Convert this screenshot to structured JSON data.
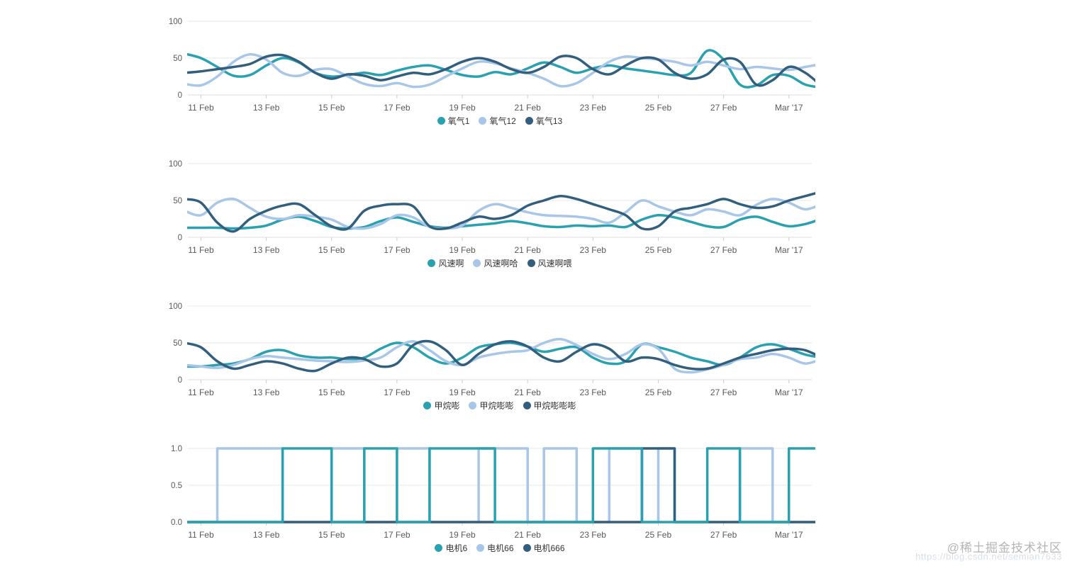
{
  "watermark": {
    "line1": "@稀土掘金技术社区",
    "line2": "https://blog.csdn.net/semian7633"
  },
  "palette": {
    "teal": "#2aa1b0",
    "light_blue": "#a8c6e8",
    "navy": "#335f7f"
  },
  "chart_data": [
    {
      "type": "line",
      "title": "",
      "x_tick_labels": [
        "11 Feb",
        "13 Feb",
        "15 Feb",
        "17 Feb",
        "19 Feb",
        "21 Feb",
        "23 Feb",
        "25 Feb",
        "27 Feb",
        "Mar '17"
      ],
      "x_start_day": -0.5,
      "x_step_days": 0.5,
      "xlim_days": [
        -0.4,
        18.7
      ],
      "ylim": [
        0,
        100
      ],
      "y_tick_labels": [
        "100",
        "50",
        "0"
      ],
      "grid": true,
      "legend_position": "bottom",
      "draw_order": [
        0,
        1,
        2
      ],
      "series": [
        {
          "name": "氧气1",
          "color": "#2aa1b0",
          "values": [
            56,
            50,
            38,
            26,
            27,
            40,
            50,
            44,
            30,
            25,
            27,
            30,
            27,
            33,
            38,
            40,
            34,
            27,
            25,
            31,
            28,
            36,
            44,
            38,
            30,
            36,
            40,
            36,
            33,
            30,
            27,
            30,
            60,
            48,
            14,
            13,
            27,
            26,
            14,
            10
          ]
        },
        {
          "name": "氧气12",
          "color": "#a8c6e8",
          "values": [
            15,
            13,
            25,
            45,
            55,
            48,
            30,
            26,
            34,
            35,
            25,
            15,
            12,
            16,
            11,
            14,
            25,
            36,
            45,
            43,
            36,
            30,
            22,
            12,
            16,
            30,
            45,
            52,
            50,
            48,
            45,
            40,
            45,
            40,
            35,
            38,
            36,
            34,
            38,
            42
          ]
        },
        {
          "name": "氧气13",
          "color": "#335f7f",
          "values": [
            30,
            32,
            35,
            38,
            42,
            52,
            54,
            45,
            30,
            22,
            28,
            26,
            20,
            25,
            30,
            28,
            35,
            45,
            50,
            45,
            35,
            30,
            38,
            52,
            50,
            35,
            28,
            40,
            50,
            48,
            30,
            22,
            28,
            48,
            45,
            14,
            20,
            38,
            30,
            12
          ]
        }
      ]
    },
    {
      "type": "line",
      "title": "",
      "x_tick_labels": [
        "11 Feb",
        "13 Feb",
        "15 Feb",
        "17 Feb",
        "19 Feb",
        "21 Feb",
        "23 Feb",
        "25 Feb",
        "27 Feb",
        "Mar '17"
      ],
      "x_start_day": -0.5,
      "x_step_days": 0.5,
      "xlim_days": [
        -0.4,
        18.7
      ],
      "ylim": [
        0,
        100
      ],
      "y_tick_labels": [
        "100",
        "50",
        "0"
      ],
      "grid": true,
      "legend_position": "bottom",
      "draw_order": [
        0,
        1,
        2
      ],
      "series": [
        {
          "name": "风速啊",
          "color": "#2aa1b0",
          "values": [
            13,
            13,
            13,
            12,
            13,
            16,
            24,
            28,
            22,
            14,
            12,
            14,
            22,
            27,
            21,
            15,
            13,
            15,
            17,
            19,
            22,
            19,
            15,
            14,
            16,
            15,
            16,
            14,
            24,
            30,
            27,
            21,
            15,
            14,
            24,
            28,
            21,
            15,
            18,
            25
          ]
        },
        {
          "name": "风速啊哈",
          "color": "#a8c6e8",
          "values": [
            36,
            30,
            47,
            52,
            40,
            28,
            25,
            30,
            28,
            24,
            14,
            12,
            18,
            30,
            27,
            14,
            12,
            16,
            36,
            45,
            40,
            34,
            30,
            29,
            28,
            25,
            20,
            34,
            50,
            42,
            35,
            30,
            38,
            35,
            30,
            44,
            52,
            47,
            38,
            45
          ]
        },
        {
          "name": "风速啊喂",
          "color": "#335f7f",
          "values": [
            52,
            47,
            20,
            8,
            25,
            36,
            43,
            45,
            30,
            15,
            12,
            36,
            43,
            45,
            42,
            15,
            12,
            20,
            28,
            25,
            30,
            43,
            50,
            56,
            52,
            45,
            38,
            30,
            12,
            15,
            35,
            40,
            45,
            52,
            45,
            40,
            42,
            50,
            56,
            62
          ]
        }
      ]
    },
    {
      "type": "line",
      "title": "",
      "x_tick_labels": [
        "11 Feb",
        "13 Feb",
        "15 Feb",
        "17 Feb",
        "19 Feb",
        "21 Feb",
        "23 Feb",
        "25 Feb",
        "27 Feb",
        "Mar '17"
      ],
      "x_start_day": -0.5,
      "x_step_days": 0.5,
      "xlim_days": [
        -0.4,
        18.7
      ],
      "ylim": [
        0,
        100
      ],
      "y_tick_labels": [
        "100",
        "50",
        "0"
      ],
      "grid": true,
      "legend_position": "bottom",
      "draw_order": [
        0,
        1,
        2
      ],
      "series": [
        {
          "name": "甲烷嘭",
          "color": "#2aa1b0",
          "values": [
            18,
            18,
            20,
            22,
            28,
            38,
            40,
            33,
            30,
            30,
            28,
            30,
            42,
            50,
            44,
            30,
            22,
            30,
            44,
            48,
            50,
            45,
            38,
            42,
            44,
            30,
            22,
            25,
            48,
            44,
            38,
            30,
            25,
            20,
            30,
            44,
            48,
            42,
            34,
            30
          ]
        },
        {
          "name": "甲烷嘭嘭",
          "color": "#a8c6e8",
          "values": [
            20,
            18,
            16,
            20,
            28,
            32,
            30,
            28,
            26,
            25,
            24,
            26,
            30,
            44,
            52,
            40,
            25,
            20,
            30,
            35,
            38,
            40,
            50,
            55,
            47,
            35,
            28,
            35,
            48,
            42,
            15,
            10,
            14,
            20,
            28,
            30,
            35,
            30,
            22,
            28
          ]
        },
        {
          "name": "甲烷嘭嘭嘭",
          "color": "#335f7f",
          "values": [
            50,
            44,
            25,
            15,
            20,
            25,
            22,
            15,
            12,
            22,
            30,
            28,
            18,
            22,
            47,
            52,
            40,
            20,
            35,
            48,
            52,
            45,
            30,
            25,
            38,
            48,
            42,
            25,
            30,
            28,
            20,
            15,
            15,
            22,
            30,
            35,
            40,
            42,
            40,
            30
          ]
        }
      ]
    },
    {
      "type": "step",
      "title": "",
      "x_tick_labels": [
        "11 Feb",
        "13 Feb",
        "15 Feb",
        "17 Feb",
        "19 Feb",
        "21 Feb",
        "23 Feb",
        "25 Feb",
        "27 Feb",
        "Mar '17"
      ],
      "x_start_day": -0.5,
      "x_step_days": 0.5,
      "xlim_days": [
        -0.4,
        18.7
      ],
      "ylim": [
        0,
        1
      ],
      "y_tick_labels": [
        "1.0",
        "0.5",
        "0.0"
      ],
      "grid": true,
      "legend_position": "bottom",
      "draw_order": [
        1,
        2,
        0
      ],
      "series": [
        {
          "name": "电机6",
          "color": "#2aa1b0",
          "values": [
            0,
            0,
            0,
            0,
            0,
            0,
            1,
            1,
            1,
            0,
            0,
            1,
            1,
            0,
            0,
            1,
            1,
            1,
            1,
            0,
            0,
            0,
            0,
            0,
            0,
            1,
            1,
            1,
            0,
            0,
            0,
            0,
            1,
            1,
            0,
            0,
            0,
            1,
            1,
            1
          ]
        },
        {
          "name": "电机66",
          "color": "#a8c6e8",
          "values": [
            0,
            0,
            1,
            1,
            1,
            1,
            0,
            0,
            0,
            1,
            1,
            0,
            0,
            1,
            1,
            0,
            0,
            0,
            1,
            1,
            1,
            0,
            1,
            1,
            0,
            0,
            1,
            1,
            0,
            1,
            0,
            0,
            0,
            0,
            1,
            1,
            0,
            0,
            0,
            0
          ]
        },
        {
          "name": "电机666",
          "color": "#335f7f",
          "values": [
            0,
            0,
            0,
            0,
            0,
            0,
            0,
            0,
            0,
            0,
            0,
            0,
            0,
            0,
            0,
            0,
            0,
            0,
            0,
            0,
            0,
            0,
            0,
            0,
            0,
            0,
            0,
            0,
            1,
            1,
            0,
            0,
            0,
            0,
            0,
            0,
            0,
            0,
            0,
            0
          ]
        }
      ]
    }
  ]
}
